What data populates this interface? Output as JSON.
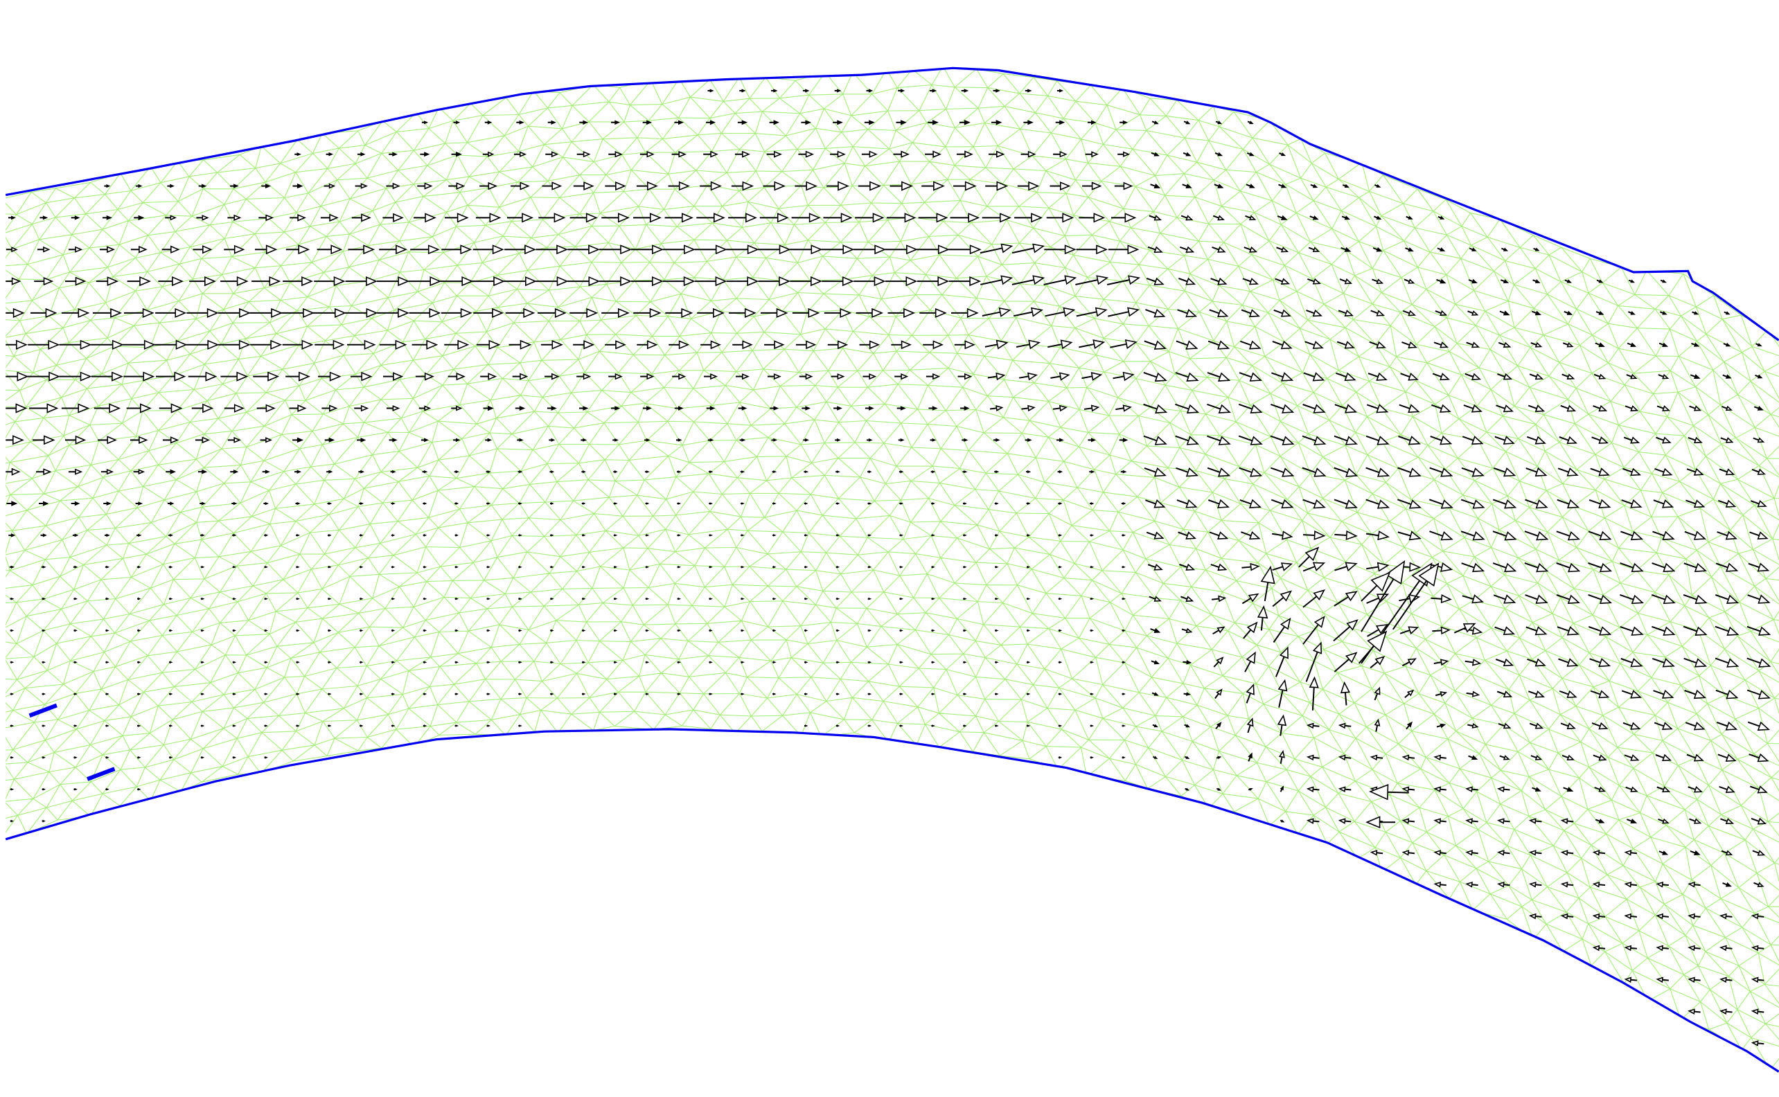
{
  "figure": {
    "kind": "river flow velocity vector field on triangular mesh",
    "colors": {
      "background": "#ffffff",
      "boundary": "#0000ee",
      "mesh": "#a6ee7a",
      "vectors": "#000000"
    }
  }
}
